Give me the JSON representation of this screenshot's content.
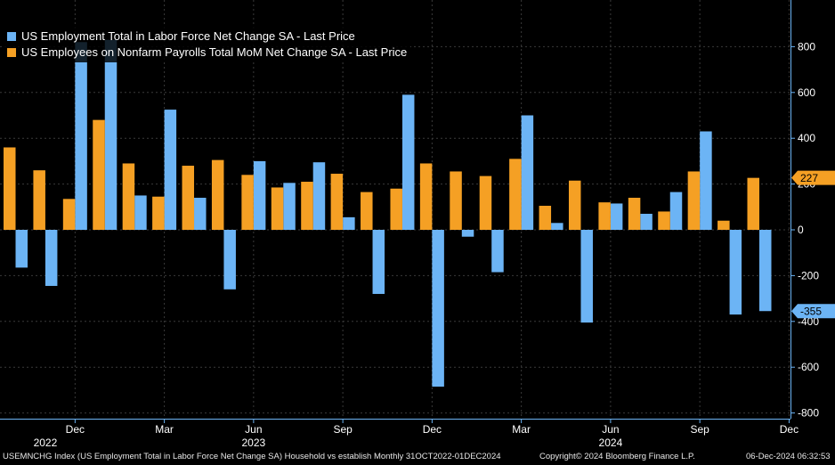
{
  "chart_data": {
    "type": "bar",
    "x": [
      "Oct 2022",
      "Nov 2022",
      "Dec 2022",
      "Jan 2023",
      "Feb 2023",
      "Mar 2023",
      "Apr 2023",
      "May 2023",
      "Jun 2023",
      "Jul 2023",
      "Aug 2023",
      "Sep 2023",
      "Oct 2023",
      "Nov 2023",
      "Dec 2023",
      "Jan 2024",
      "Feb 2024",
      "Mar 2024",
      "Apr 2024",
      "May 2024",
      "Jun 2024",
      "Jul 2024",
      "Aug 2024",
      "Sep 2024",
      "Oct 2024",
      "Nov 2024"
    ],
    "series": [
      {
        "name": "US Employment Total in Labor Force Net Change SA - Last Price",
        "color": "#6cb4f5",
        "values": [
          -165,
          -245,
          820,
          830,
          150,
          525,
          140,
          -260,
          300,
          205,
          295,
          55,
          -280,
          590,
          -685,
          -30,
          -185,
          500,
          30,
          -405,
          115,
          70,
          165,
          430,
          -370,
          -355
        ]
      },
      {
        "name": "US Employees on Nonfarm Payrolls Total MoM Net Change SA - Last Price",
        "color": "#f5a024",
        "values": [
          360,
          260,
          135,
          480,
          290,
          145,
          280,
          305,
          240,
          185,
          210,
          245,
          165,
          180,
          290,
          255,
          235,
          310,
          105,
          215,
          120,
          140,
          80,
          255,
          40,
          227
        ]
      }
    ],
    "ylim": [
      -820,
      1010
    ],
    "y_ticks": [
      800,
      600,
      400,
      200,
      0,
      -200,
      -400,
      -600,
      -800
    ],
    "x_tick_labels": [
      {
        "label": "Dec",
        "index": 2
      },
      {
        "label": "Mar",
        "index": 5
      },
      {
        "label": "Jun",
        "index": 8
      },
      {
        "label": "Sep",
        "index": 11
      },
      {
        "label": "Dec",
        "index": 14
      },
      {
        "label": "Mar",
        "index": 17
      },
      {
        "label": "Jun",
        "index": 20
      },
      {
        "label": "Sep",
        "index": 23
      },
      {
        "label": "Dec",
        "index": 26
      }
    ],
    "year_labels": [
      {
        "label": "2022",
        "index": 1
      },
      {
        "label": "2023",
        "index": 8
      },
      {
        "label": "2024",
        "index": 20
      }
    ],
    "last_value_labels": [
      {
        "text": "227",
        "value": 227,
        "color": "#f5a024",
        "text_color": "#000000"
      },
      {
        "text": "-355",
        "value": -355,
        "color": "#6cb4f5",
        "text_color": "#000000"
      }
    ],
    "grid": true,
    "legend_position": "top-left",
    "background": "#000000",
    "grid_color": "#3a3a3a",
    "axis_color": "#6cb4f5"
  },
  "footer": {
    "description": "USEMNCHG Index (US Employment Total in Labor Force Net Change SA) Household vs establish  Monthly 31OCT2022-01DEC2024",
    "copyright": "Copyright© 2024 Bloomberg Finance L.P.",
    "timestamp": "06-Dec-2024 06:32:53"
  }
}
